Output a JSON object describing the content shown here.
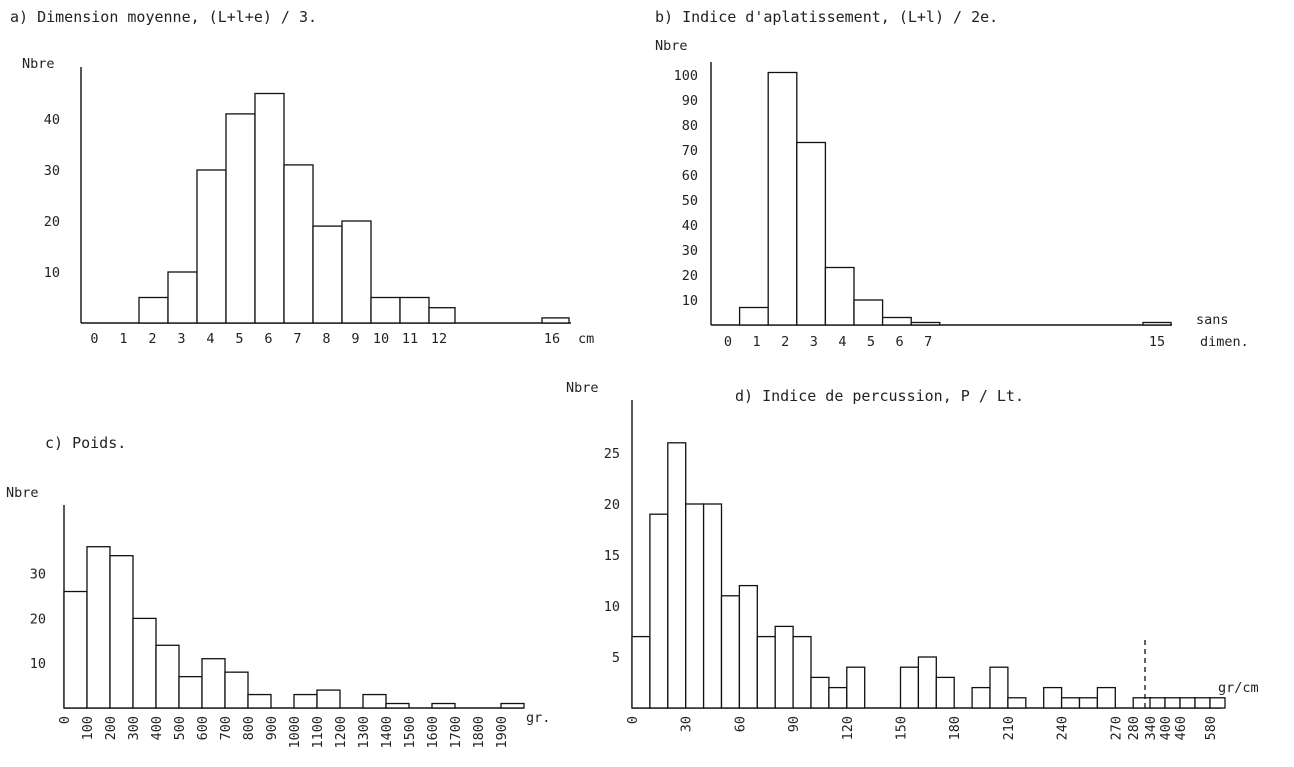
{
  "chart_data": [
    {
      "type": "bar",
      "title": "a) Dimension moyenne, (L+l+e) / 3.",
      "ylabel": "Nbre",
      "xlabel": "cm",
      "ylim": [
        0,
        50
      ],
      "yticks": [
        10,
        20,
        30,
        40
      ],
      "xticks": [
        "0",
        "1",
        "2",
        "3",
        "4",
        "5",
        "6",
        "7",
        "8",
        "9",
        "10",
        "11",
        "12",
        "16"
      ],
      "bins": [
        {
          "from": 2,
          "to": 3,
          "value": 5
        },
        {
          "from": 3,
          "to": 4,
          "value": 10
        },
        {
          "from": 4,
          "to": 5,
          "value": 30
        },
        {
          "from": 5,
          "to": 6,
          "value": 41
        },
        {
          "from": 6,
          "to": 7,
          "value": 45
        },
        {
          "from": 7,
          "to": 8,
          "value": 31
        },
        {
          "from": 8,
          "to": 9,
          "value": 19
        },
        {
          "from": 9,
          "to": 10,
          "value": 20
        },
        {
          "from": 10,
          "to": 11,
          "value": 5
        },
        {
          "from": 11,
          "to": 12,
          "value": 5
        },
        {
          "from": 12,
          "to": 13,
          "value": 3
        },
        {
          "from": 16,
          "to": 17,
          "value": 1
        }
      ]
    },
    {
      "type": "bar",
      "title": "b) Indice d'aplatissement, (L+l) / 2e.",
      "ylabel": "Nbre",
      "xlabel_line1": "sans",
      "xlabel_line2": "dimen.",
      "ylim": [
        0,
        105
      ],
      "yticks": [
        10,
        20,
        30,
        40,
        50,
        60,
        70,
        80,
        90,
        100
      ],
      "xticks": [
        "0",
        "1",
        "2",
        "3",
        "4",
        "5",
        "6",
        "7",
        "15"
      ],
      "bins": [
        {
          "from": 1,
          "to": 2,
          "value": 7
        },
        {
          "from": 2,
          "to": 3,
          "value": 101
        },
        {
          "from": 3,
          "to": 4,
          "value": 73
        },
        {
          "from": 4,
          "to": 5,
          "value": 23
        },
        {
          "from": 5,
          "to": 6,
          "value": 10
        },
        {
          "from": 6,
          "to": 7,
          "value": 3
        },
        {
          "from": 7,
          "to": 8,
          "value": 1
        },
        {
          "from": 15,
          "to": 16,
          "value": 1
        }
      ]
    },
    {
      "type": "bar",
      "title": "c) Poids.",
      "ylabel": "Nbre",
      "xlabel": "gr.",
      "ylim": [
        0,
        42
      ],
      "yticks": [
        10,
        20,
        30
      ],
      "xticks": [
        "0",
        "100",
        "200",
        "300",
        "400",
        "500",
        "600",
        "700",
        "800",
        "900",
        "1000",
        "1100",
        "1200",
        "1300",
        "1400",
        "1500",
        "1600",
        "1700",
        "1800",
        "1900"
      ],
      "bins": [
        {
          "from": 0,
          "to": 100,
          "value": 26
        },
        {
          "from": 100,
          "to": 200,
          "value": 36
        },
        {
          "from": 200,
          "to": 300,
          "value": 34
        },
        {
          "from": 300,
          "to": 400,
          "value": 20
        },
        {
          "from": 400,
          "to": 500,
          "value": 14
        },
        {
          "from": 500,
          "to": 600,
          "value": 7
        },
        {
          "from": 600,
          "to": 700,
          "value": 11
        },
        {
          "from": 700,
          "to": 800,
          "value": 8
        },
        {
          "from": 800,
          "to": 900,
          "value": 3
        },
        {
          "from": 1000,
          "to": 1100,
          "value": 3
        },
        {
          "from": 1100,
          "to": 1200,
          "value": 4
        },
        {
          "from": 1300,
          "to": 1400,
          "value": 3
        },
        {
          "from": 1400,
          "to": 1500,
          "value": 1
        },
        {
          "from": 1600,
          "to": 1700,
          "value": 1
        },
        {
          "from": 1900,
          "to": 2000,
          "value": 1
        }
      ]
    },
    {
      "type": "bar",
      "title": "d) Indice de percussion, P / Lt.",
      "ylabel": "Nbre",
      "xlabel": "gr/cm",
      "ylim": [
        0,
        30
      ],
      "yticks": [
        5,
        10,
        15,
        20,
        25
      ],
      "xticks": [
        "0",
        "30",
        "60",
        "90",
        "120",
        "150",
        "180",
        "210",
        "240",
        "270",
        "280",
        "340",
        "400",
        "460",
        "580"
      ],
      "bins": [
        {
          "label": "0-10",
          "value": 7
        },
        {
          "label": "10-20",
          "value": 19
        },
        {
          "label": "20-30",
          "value": 26
        },
        {
          "label": "30-40",
          "value": 20
        },
        {
          "label": "40-50",
          "value": 20
        },
        {
          "label": "50-60",
          "value": 11
        },
        {
          "label": "60-70",
          "value": 12
        },
        {
          "label": "70-80",
          "value": 7
        },
        {
          "label": "80-90",
          "value": 8
        },
        {
          "label": "90-100",
          "value": 7
        },
        {
          "label": "100-110",
          "value": 3
        },
        {
          "label": "110-120",
          "value": 2
        },
        {
          "label": "120-130",
          "value": 4
        },
        {
          "label": "130-140",
          "value": 0
        },
        {
          "label": "140-150",
          "value": 0
        },
        {
          "label": "150-160",
          "value": 4
        },
        {
          "label": "160-170",
          "value": 5
        },
        {
          "label": "170-180",
          "value": 3
        },
        {
          "label": "180-190",
          "value": 0
        },
        {
          "label": "190-200",
          "value": 2
        },
        {
          "label": "200-210",
          "value": 4
        },
        {
          "label": "210-220",
          "value": 1
        },
        {
          "label": "220-230",
          "value": 0
        },
        {
          "label": "230-240",
          "value": 2
        },
        {
          "label": "240-250",
          "value": 1
        },
        {
          "label": "250-260",
          "value": 1
        },
        {
          "label": "260-270",
          "value": 2
        },
        {
          "label": "270-280",
          "value": 0
        },
        {
          "label": "280-290",
          "value": 1
        },
        {
          "label": "340",
          "value": 1
        },
        {
          "label": "400",
          "value": 1
        },
        {
          "label": "460",
          "value": 1
        },
        {
          "label": "520",
          "value": 1
        },
        {
          "label": "580",
          "value": 1
        }
      ]
    }
  ]
}
